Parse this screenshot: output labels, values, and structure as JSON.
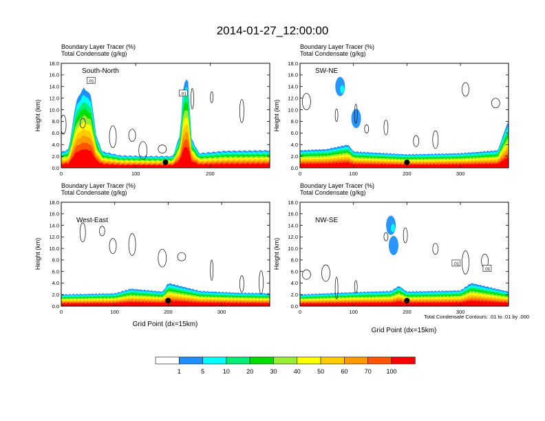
{
  "title": "2014-01-27_12:00:00",
  "panel_header": {
    "line1": "Boundary Layer Tracer   (%)",
    "line2": "Total Condensate   (g/kg)"
  },
  "ylabel": "Height (km)",
  "xlabel": "Grid Point (dx=15km)",
  "contour_note": "Total Condensate Contours: .01 to .01 by .000",
  "contour_label": ".01",
  "colorbar": {
    "levels": [
      "1",
      "5",
      "10",
      "20",
      "30",
      "40",
      "50",
      "60",
      "70",
      "100"
    ],
    "colors": [
      "#ffffff",
      "#1e90ff",
      "#00ffff",
      "#00ee76",
      "#00dd00",
      "#99ee33",
      "#ffff00",
      "#ffcc00",
      "#ff9900",
      "#ff5500",
      "#ff0000"
    ]
  },
  "chart_data": [
    {
      "type": "contour-cross-section",
      "name": "South-North",
      "xlim": [
        0,
        280
      ],
      "xticks": [
        0,
        100,
        200
      ],
      "ylim": [
        0,
        18
      ],
      "yticks": [
        0.0,
        2.0,
        4.0,
        6.0,
        8.0,
        10.0,
        12.0,
        14.0,
        16.0,
        18.0
      ],
      "surface_marker_x": 140,
      "tracer_top_km": [
        [
          0,
          2.7
        ],
        [
          10,
          3.2
        ],
        [
          20,
          11.5
        ],
        [
          30,
          13.8
        ],
        [
          40,
          12.5
        ],
        [
          47,
          5.5
        ],
        [
          55,
          2.8
        ],
        [
          80,
          2.1
        ],
        [
          120,
          2.0
        ],
        [
          150,
          2.0
        ],
        [
          160,
          6.0
        ],
        [
          164,
          14.5
        ],
        [
          170,
          15.5
        ],
        [
          175,
          5.0
        ],
        [
          185,
          2.5
        ],
        [
          220,
          2.9
        ],
        [
          280,
          3.0
        ]
      ],
      "condensate_labels_x_y": [
        [
          40,
          15.0
        ],
        [
          164,
          12.8
        ]
      ]
    },
    {
      "type": "contour-cross-section",
      "name": "SW-NE",
      "xlim": [
        0,
        390
      ],
      "xticks": [
        0,
        100,
        200,
        300
      ],
      "ylim": [
        0,
        18
      ],
      "yticks": [
        0.0,
        2.0,
        4.0,
        6.0,
        8.0,
        10.0,
        12.0,
        14.0,
        16.0,
        18.0
      ],
      "surface_marker_x": 200,
      "tracer_top_km": [
        [
          0,
          3.0
        ],
        [
          50,
          3.2
        ],
        [
          90,
          4.0
        ],
        [
          100,
          2.8
        ],
        [
          200,
          2.3
        ],
        [
          300,
          2.5
        ],
        [
          370,
          3.0
        ],
        [
          385,
          7.0
        ],
        [
          390,
          8.0
        ]
      ],
      "elevated_patch_x_y": [
        [
          75,
          14.0
        ],
        [
          105,
          8.5
        ]
      ],
      "condensate_labels_x_y": []
    },
    {
      "type": "contour-cross-section",
      "name": "West-East",
      "xlim": [
        0,
        390
      ],
      "xticks": [
        0,
        100,
        200,
        300
      ],
      "ylim": [
        0,
        18
      ],
      "yticks": [
        0.0,
        2.0,
        4.0,
        6.0,
        8.0,
        10.0,
        12.0,
        14.0,
        16.0,
        18.0
      ],
      "surface_marker_x": 200,
      "tracer_top_km": [
        [
          0,
          2.0
        ],
        [
          100,
          2.2
        ],
        [
          130,
          3.0
        ],
        [
          190,
          2.5
        ],
        [
          200,
          4.0
        ],
        [
          260,
          2.6
        ],
        [
          330,
          2.3
        ],
        [
          390,
          2.2
        ]
      ],
      "condensate_labels_x_y": []
    },
    {
      "type": "contour-cross-section",
      "name": "NW-SE",
      "xlim": [
        0,
        390
      ],
      "xticks": [
        0,
        100,
        200,
        300
      ],
      "ylim": [
        0,
        18
      ],
      "yticks": [
        0.0,
        2.0,
        4.0,
        6.0,
        8.0,
        10.0,
        12.0,
        14.0,
        16.0,
        18.0
      ],
      "surface_marker_x": 200,
      "tracer_top_km": [
        [
          0,
          2.0
        ],
        [
          100,
          2.4
        ],
        [
          170,
          2.6
        ],
        [
          185,
          3.5
        ],
        [
          200,
          2.5
        ],
        [
          300,
          2.7
        ],
        [
          320,
          4.0
        ],
        [
          390,
          2.5
        ]
      ],
      "elevated_patch_x_y": [
        [
          170,
          14.0
        ],
        [
          175,
          10.5
        ]
      ],
      "condensate_labels_x_y": [
        [
          292,
          7.4
        ],
        [
          350,
          6.5
        ]
      ]
    }
  ]
}
